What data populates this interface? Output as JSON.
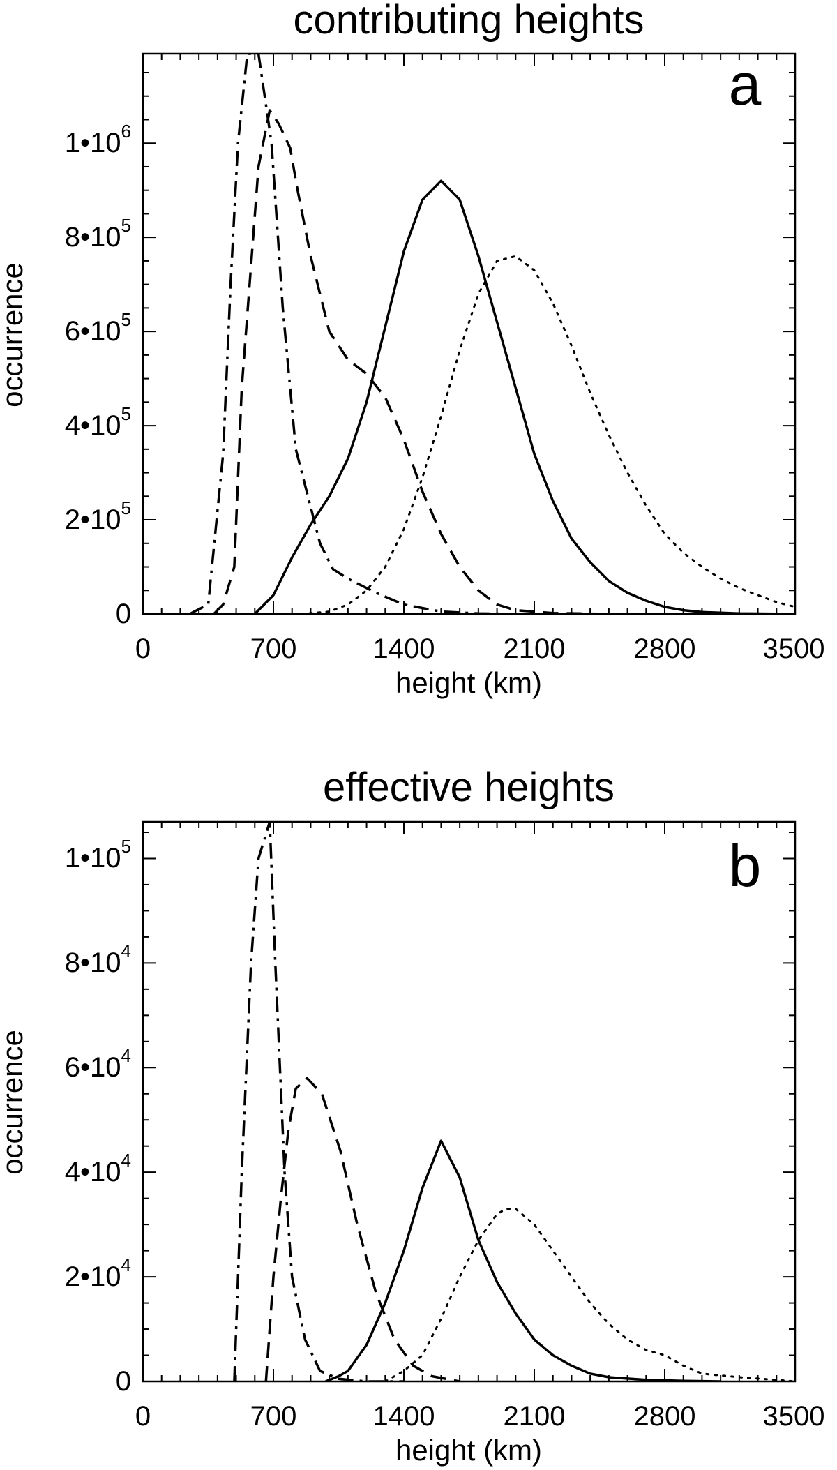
{
  "chart_data": [
    {
      "type": "line",
      "panel": "a",
      "title": "contributing heights",
      "xlabel": "height (km)",
      "ylabel": "occurrence",
      "xlim": [
        0,
        3500
      ],
      "ylim": [
        0,
        1190000
      ],
      "xticks": [
        0,
        700,
        1400,
        2100,
        2800,
        3500
      ],
      "xticklabels": [
        "0",
        "700",
        "1400",
        "2100",
        "2800",
        "3500"
      ],
      "yticks": [
        0,
        200000,
        400000,
        600000,
        800000,
        1000000
      ],
      "yticklabels": [
        {
          "mantissa": "0",
          "exp": ""
        },
        {
          "mantissa": "2•10",
          "exp": "5"
        },
        {
          "mantissa": "4•10",
          "exp": "5"
        },
        {
          "mantissa": "6•10",
          "exp": "5"
        },
        {
          "mantissa": "8•10",
          "exp": "5"
        },
        {
          "mantissa": "1•10",
          "exp": "6"
        }
      ],
      "series": [
        {
          "name": "dash-dot",
          "style": "dashdot",
          "x": [
            250,
            350,
            430,
            470,
            510,
            560,
            620,
            690,
            750,
            820,
            950,
            1020,
            1100,
            1250,
            1400,
            1600,
            1800,
            2000
          ],
          "y": [
            0,
            20000,
            340000,
            700000,
            1000000,
            1190000,
            1190000,
            1000000,
            650000,
            350000,
            150000,
            95000,
            75000,
            45000,
            20000,
            5000,
            1000,
            0
          ]
        },
        {
          "name": "dashed",
          "style": "dashed",
          "x": [
            380,
            430,
            490,
            530,
            580,
            620,
            680,
            730,
            790,
            830,
            900,
            1000,
            1100,
            1200,
            1300,
            1400,
            1500,
            1600,
            1700,
            1800,
            1900,
            2000,
            2200,
            2500,
            2700
          ],
          "y": [
            0,
            20000,
            100000,
            480000,
            740000,
            950000,
            1070000,
            1040000,
            990000,
            900000,
            760000,
            600000,
            540000,
            510000,
            460000,
            370000,
            260000,
            170000,
            100000,
            50000,
            20000,
            8000,
            2000,
            0,
            0
          ]
        },
        {
          "name": "solid",
          "style": "solid",
          "x": [
            600,
            700,
            800,
            900,
            1000,
            1100,
            1200,
            1300,
            1400,
            1500,
            1600,
            1700,
            1800,
            1900,
            2000,
            2100,
            2200,
            2300,
            2400,
            2500,
            2600,
            2700,
            2800,
            2900,
            3000,
            3200,
            3500
          ],
          "y": [
            0,
            40000,
            120000,
            190000,
            250000,
            330000,
            450000,
            610000,
            770000,
            880000,
            920000,
            880000,
            760000,
            620000,
            480000,
            340000,
            240000,
            160000,
            110000,
            70000,
            45000,
            28000,
            15000,
            8000,
            4000,
            1000,
            0
          ]
        },
        {
          "name": "dotted",
          "style": "dotted",
          "x": [
            850,
            1000,
            1100,
            1200,
            1300,
            1400,
            1500,
            1600,
            1700,
            1800,
            1900,
            2000,
            2100,
            2200,
            2300,
            2400,
            2500,
            2600,
            2700,
            2800,
            2900,
            3000,
            3100,
            3200,
            3300,
            3400,
            3500
          ],
          "y": [
            0,
            5000,
            20000,
            50000,
            100000,
            180000,
            290000,
            420000,
            560000,
            680000,
            750000,
            760000,
            730000,
            660000,
            570000,
            470000,
            380000,
            300000,
            230000,
            170000,
            130000,
            100000,
            75000,
            55000,
            40000,
            25000,
            15000
          ]
        }
      ]
    },
    {
      "type": "line",
      "panel": "b",
      "title": "effective heights",
      "xlabel": "height (km)",
      "ylabel": "occurrence",
      "xlim": [
        0,
        3500
      ],
      "ylim": [
        0,
        107000
      ],
      "xticks": [
        0,
        700,
        1400,
        2100,
        2800,
        3500
      ],
      "xticklabels": [
        "0",
        "700",
        "1400",
        "2100",
        "2800",
        "3500"
      ],
      "yticks": [
        0,
        20000,
        40000,
        60000,
        80000,
        100000
      ],
      "yticklabels": [
        {
          "mantissa": "0",
          "exp": ""
        },
        {
          "mantissa": "2•10",
          "exp": "4"
        },
        {
          "mantissa": "4•10",
          "exp": "4"
        },
        {
          "mantissa": "6•10",
          "exp": "4"
        },
        {
          "mantissa": "8•10",
          "exp": "4"
        },
        {
          "mantissa": "1•10",
          "exp": "5"
        }
      ],
      "series": [
        {
          "name": "dash-dot",
          "style": "dashdot",
          "x": [
            490,
            530,
            580,
            620,
            680,
            710,
            760,
            800,
            870,
            950,
            1050,
            1200,
            1400
          ],
          "y": [
            0,
            40000,
            80000,
            100000,
            107000,
            80000,
            40000,
            20000,
            8000,
            2000,
            500,
            0,
            0
          ]
        },
        {
          "name": "dashed",
          "style": "dashed",
          "x": [
            660,
            700,
            740,
            780,
            820,
            880,
            960,
            1060,
            1150,
            1250,
            1350,
            1450,
            1550,
            1700
          ],
          "y": [
            0,
            20000,
            35000,
            48000,
            56000,
            58000,
            55000,
            44000,
            30000,
            17000,
            8000,
            3000,
            1000,
            0
          ]
        },
        {
          "name": "solid",
          "style": "solid",
          "x": [
            980,
            1050,
            1100,
            1200,
            1300,
            1400,
            1500,
            1600,
            1700,
            1800,
            1900,
            2000,
            2100,
            2200,
            2300,
            2400,
            2500,
            2700,
            2900,
            3100
          ],
          "y": [
            0,
            1000,
            2000,
            7000,
            15000,
            25000,
            37000,
            46000,
            39000,
            27000,
            19000,
            13000,
            8000,
            5000,
            3000,
            1500,
            800,
            300,
            100,
            0
          ]
        },
        {
          "name": "dotted",
          "style": "dotted",
          "x": [
            1300,
            1400,
            1500,
            1600,
            1700,
            1800,
            1900,
            1950,
            2000,
            2100,
            2200,
            2300,
            2400,
            2500,
            2600,
            2700,
            2800,
            2900,
            3000,
            3200,
            3400,
            3500
          ],
          "y": [
            0,
            2000,
            5000,
            12000,
            20000,
            27000,
            32000,
            33000,
            33000,
            30000,
            25000,
            20000,
            15000,
            11000,
            8000,
            6000,
            5000,
            3000,
            1500,
            800,
            300,
            0
          ]
        }
      ]
    }
  ]
}
